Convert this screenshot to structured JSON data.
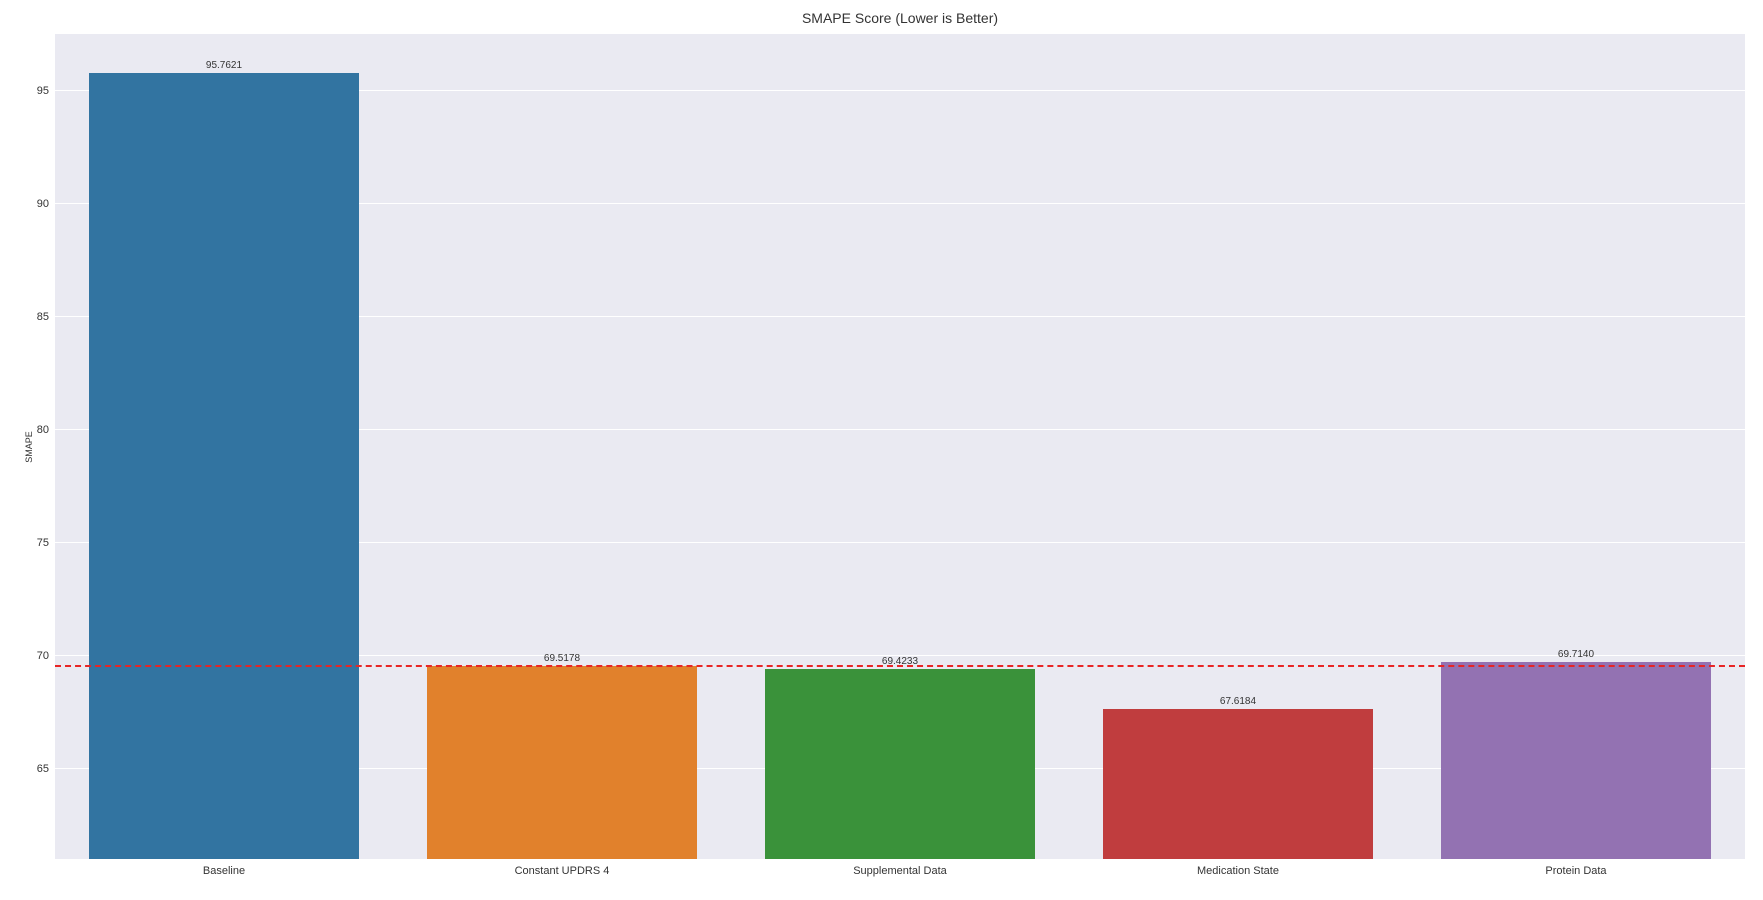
{
  "chart": {
    "type": "bar",
    "title": "SMAPE Score (Lower is Better)",
    "title_fontsize": 14,
    "title_color": "#333333",
    "ylabel": "SMAPE",
    "ylabel_fontsize": 9,
    "background_color": "#eaeaf2",
    "outer_background": "#ffffff",
    "grid_color": "#ffffff",
    "grid_linewidth": 1,
    "ylim": [
      61,
      97.5
    ],
    "yticks": [
      65,
      70,
      75,
      80,
      85,
      90,
      95
    ],
    "ytick_labels": [
      "65",
      "70",
      "75",
      "80",
      "85",
      "90",
      "95"
    ],
    "ytick_fontsize": 11,
    "xtick_fontsize": 11,
    "categories": [
      "Baseline",
      "Constant UPDRS 4",
      "Supplemental Data",
      "Medication State",
      "Protein Data"
    ],
    "values": [
      95.7621,
      69.5178,
      69.4233,
      67.6184,
      69.714
    ],
    "value_labels": [
      "95.7621",
      "69.5178",
      "69.4233",
      "67.6184",
      "69.7140"
    ],
    "value_label_fontsize": 10,
    "bar_colors": [
      "#3274a1",
      "#e1812c",
      "#3a923a",
      "#c03d3e",
      "#9372b2"
    ],
    "bar_width": 0.8,
    "reference_line": {
      "value": 69.5,
      "color": "#e82525",
      "style": "dashed",
      "linewidth": 2
    }
  }
}
